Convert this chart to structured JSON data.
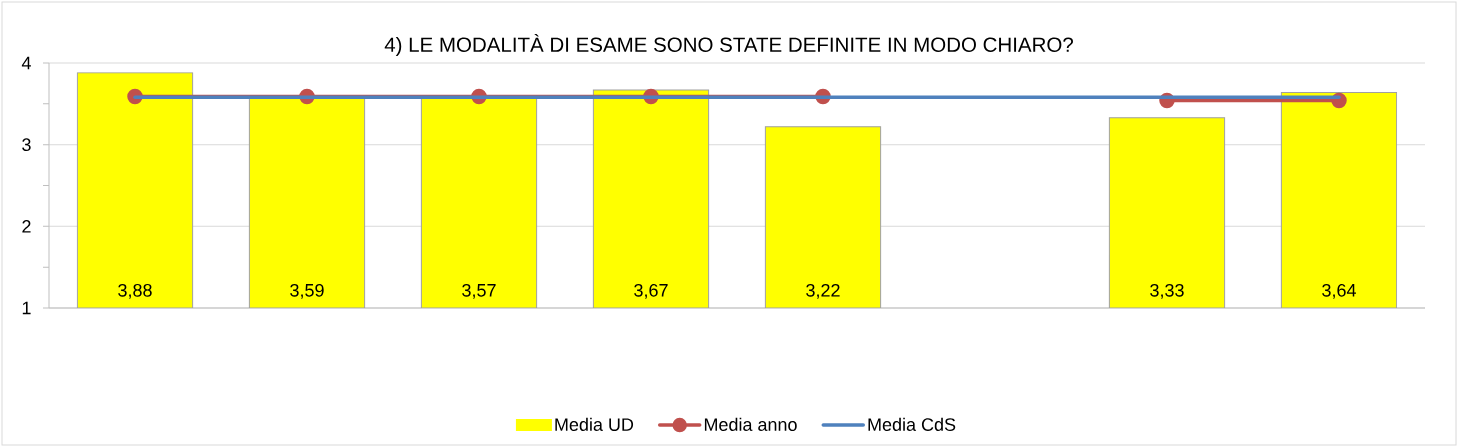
{
  "chart_data": {
    "type": "bar",
    "title": "4) LE MODALITÀ DI ESAME SONO STATE DEFINITE IN MODO CHIARO?",
    "categories": [
      null,
      null,
      null,
      null,
      null,
      null,
      null,
      null
    ],
    "series": [
      {
        "name": "Media UD",
        "color": "#ffff00",
        "values": [
          3.88,
          3.59,
          3.57,
          3.67,
          3.22,
          null,
          3.33,
          3.64
        ],
        "value_labels": [
          "3,88",
          "3,59",
          "3,57",
          "3,67",
          "3,22",
          null,
          "3,33",
          "3,64"
        ]
      },
      {
        "name": "Media anno",
        "type": "line",
        "color": "#c0504d",
        "marker": "circle",
        "values": [
          3.59,
          3.59,
          3.59,
          3.59,
          3.59,
          null,
          3.54,
          3.54
        ]
      },
      {
        "name": "Media CdS",
        "type": "line",
        "color": "#4f81bd",
        "marker": "none",
        "values": [
          3.58,
          3.58,
          3.58,
          3.58,
          3.58,
          3.58,
          3.58,
          3.58
        ]
      }
    ],
    "ylim": [
      1,
      4
    ],
    "yticks": [
      1,
      2,
      3,
      4
    ],
    "tick_labels": "y",
    "grid": "y",
    "legend": "bottom",
    "line_style": "solid"
  }
}
